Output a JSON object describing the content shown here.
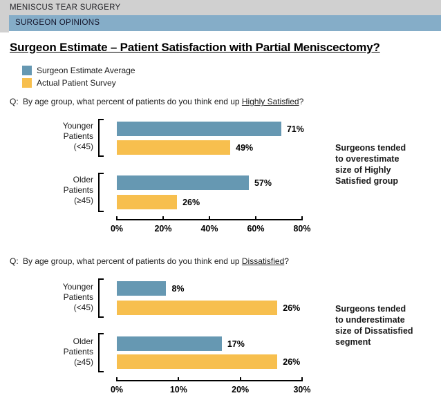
{
  "header": {
    "kicker": "MENISCUS TEAR SURGERY",
    "banner": "SURGEON OPINIONS"
  },
  "title": "Surgeon Estimate – Patient Satisfaction with Partial Meniscectomy?",
  "legend": {
    "position": "top-left",
    "items": [
      {
        "label": "Surgeon Estimate Average",
        "color": "#6698b2"
      },
      {
        "label": "Actual Patient Survey",
        "color": "#f7bf4e"
      }
    ]
  },
  "colors": {
    "surgeon_estimate_blue": "#6698b2",
    "patient_survey_yellow": "#f7bf4e",
    "banner_blue": "#85adc8",
    "header_gray": "#d0d0d0",
    "axis_black": "#000000"
  },
  "chart_data": [
    {
      "type": "bar",
      "orientation": "horizontal",
      "grid": false,
      "question": {
        "prefix": "Q:",
        "text": "By age group, what percent of patients do you think end up ",
        "emphasis": "Highly Satisfied",
        "suffix": "?"
      },
      "categories": [
        "Younger Patients (<45)",
        "Older Patients (≥45)"
      ],
      "category_lines": [
        [
          "Younger",
          "Patients",
          "(<45)"
        ],
        [
          "Older",
          "Patients",
          "(≥45)"
        ]
      ],
      "series": [
        {
          "name": "Surgeon Estimate Average",
          "color": "#6698b2",
          "values": [
            71,
            57
          ],
          "labels": [
            "71%",
            "57%"
          ]
        },
        {
          "name": "Actual Patient Survey",
          "color": "#f7bf4e",
          "values": [
            49,
            26
          ],
          "labels": [
            "49%",
            "26%"
          ]
        }
      ],
      "xlim": [
        0,
        80
      ],
      "x_ticks": [
        "0%",
        "20%",
        "40%",
        "60%",
        "80%"
      ],
      "annotation": "Surgeons tended to overestimate size of Highly Satisfied group",
      "annotation_lines": [
        "Surgeons tended",
        "to overestimate",
        "size of Highly",
        "Satisfied group"
      ]
    },
    {
      "type": "bar",
      "orientation": "horizontal",
      "grid": false,
      "question": {
        "prefix": "Q:",
        "text": "By age group, what percent of patients do you think end up ",
        "emphasis": "Dissatisfied",
        "suffix": "?"
      },
      "categories": [
        "Younger Patients (<45)",
        "Older Patients (≥45)"
      ],
      "category_lines": [
        [
          "Younger",
          "Patients",
          "(<45)"
        ],
        [
          "Older",
          "Patients",
          "(≥45)"
        ]
      ],
      "series": [
        {
          "name": "Surgeon Estimate Average",
          "color": "#6698b2",
          "values": [
            8,
            17
          ],
          "labels": [
            "8%",
            "17%"
          ]
        },
        {
          "name": "Actual Patient Survey",
          "color": "#f7bf4e",
          "values": [
            26,
            26
          ],
          "labels": [
            "26%",
            "26%"
          ]
        }
      ],
      "xlim": [
        0,
        30
      ],
      "x_ticks": [
        "0%",
        "10%",
        "20%",
        "30%"
      ],
      "annotation": "Surgeons tended to underestimate size of Dissatisfied segment",
      "annotation_lines": [
        "Surgeons tended",
        "to underestimate",
        "size of Dissatisfied",
        "segment"
      ]
    }
  ]
}
